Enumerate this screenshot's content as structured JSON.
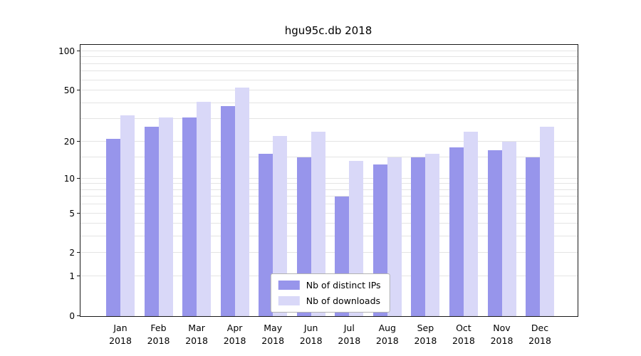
{
  "title": "hgu95c.db 2018",
  "chart_data": {
    "type": "bar",
    "title": "hgu95c.db 2018",
    "categories": [
      "Jan",
      "Feb",
      "Mar",
      "Apr",
      "May",
      "Jun",
      "Jul",
      "Aug",
      "Sep",
      "Oct",
      "Nov",
      "Dec"
    ],
    "x_year": "2018",
    "series": [
      {
        "name": "Nb of distinct IPs",
        "color": "#9795eb",
        "values": [
          21,
          26,
          31,
          38,
          16,
          15,
          7,
          13,
          15,
          18,
          17,
          15
        ]
      },
      {
        "name": "Nb of downloads",
        "color": "#d9d8f8",
        "values": [
          32,
          31,
          41,
          53,
          22,
          24,
          14,
          15,
          16,
          24,
          20,
          26
        ]
      }
    ],
    "y_ticks": [
      0,
      1,
      2,
      5,
      10,
      20,
      50,
      100
    ],
    "y_scale": "log-like (log10(value+1))",
    "ylim": [
      0,
      112
    ],
    "grid": true,
    "legend": {
      "position": "lower center",
      "entries": [
        "Nb of distinct IPs",
        "Nb of downloads"
      ]
    }
  }
}
